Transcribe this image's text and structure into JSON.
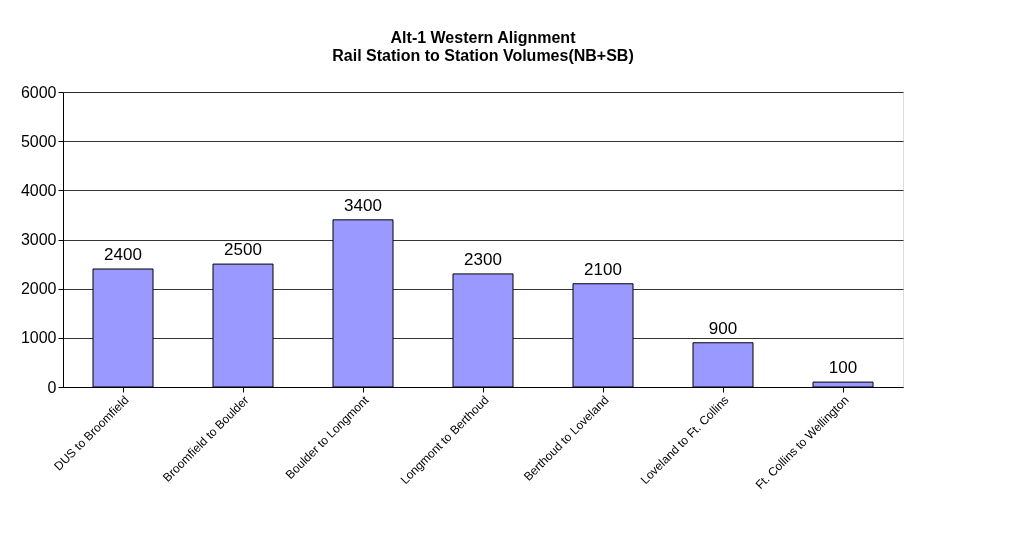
{
  "chart_data": {
    "type": "bar",
    "title": "Alt-1 Western Alignment\nRail Station to Station Volumes(NB+SB)",
    "categories": [
      "DUS to Broomfield",
      "Broomfield to Boulder",
      "Boulder to Longmont",
      "Longmont to Berthoud",
      "Berthoud to Loveland",
      "Loveland to Ft. Collins",
      "Ft. Collins to Wellington"
    ],
    "values": [
      2400,
      2500,
      3400,
      2300,
      2100,
      900,
      100
    ],
    "color": "#9999ff",
    "ylim": [
      0,
      6000
    ],
    "yticks": [
      0,
      1000,
      2000,
      3000,
      4000,
      5000,
      6000
    ],
    "grid": "y",
    "data_labels": true
  }
}
